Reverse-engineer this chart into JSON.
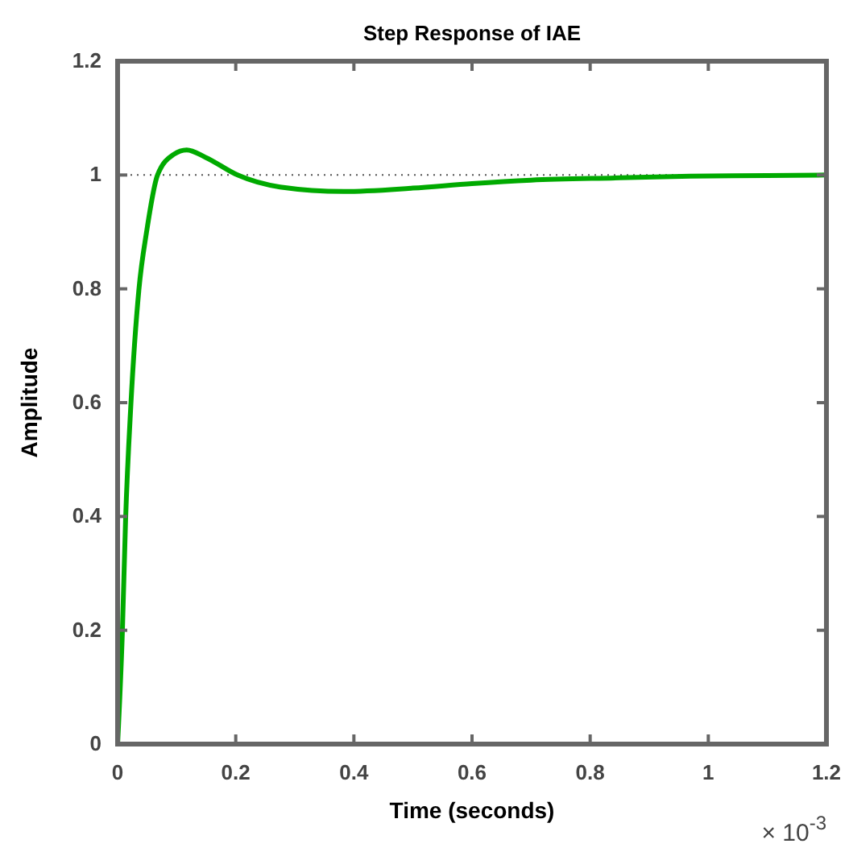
{
  "chart_data": {
    "type": "line",
    "title": "Step Response of IAE",
    "xlabel": "Time (seconds)",
    "ylabel": "Amplitude",
    "annotations": [
      "× 10$^{-3}$"
    ],
    "x": [
      0,
      0.008,
      0.0135,
      0.0225,
      0.036,
      0.0495,
      0.0676,
      0.0946,
      0.117,
      0.149,
      0.203,
      0.275,
      0.383,
      0.5,
      0.6,
      0.7,
      0.85,
      0.97,
      1.1,
      1.2
    ],
    "series": [
      {
        "color": "#00aa00",
        "values": [
          0,
          0.195,
          0.394,
          0.597,
          0.798,
          0.903,
          1.0,
          1.036,
          1.044,
          1.031,
          1.0,
          0.979,
          0.971,
          0.977,
          0.985,
          0.991,
          0.995,
          0.998,
          0.999,
          1.0
        ]
      }
    ],
    "xlim": [
      0,
      1.2
    ],
    "xticks": [
      0,
      0.2,
      0.4,
      0.6,
      0.8,
      1,
      1.2
    ],
    "ylim": [
      0,
      1.2
    ],
    "yticks": [
      0,
      0.2,
      0.4,
      0.6,
      0.8,
      1,
      1.2
    ],
    "ref_lines": [
      {
        "axis": "y",
        "value": 1,
        "line_style": "dotted",
        "color": "#555555"
      }
    ],
    "grid": false,
    "marker": "none",
    "line_style": "solid"
  }
}
